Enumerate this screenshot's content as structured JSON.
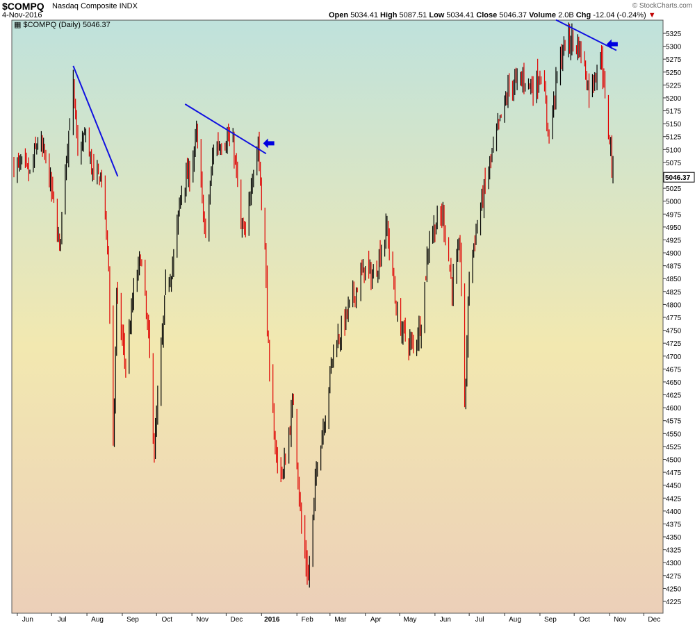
{
  "header": {
    "symbol": "$COMPQ",
    "company": "Nasdaq Composite",
    "exchange": "INDX",
    "date": "4-Nov-2016",
    "copyright": "© StockCharts.com",
    "open_label": "Open",
    "open": "5034.41",
    "high_label": "High",
    "high": "5087.51",
    "low_label": "Low",
    "low": "5034.41",
    "close_label": "Close",
    "close": "5046.37",
    "volume_label": "Volume",
    "volume": "2.0B",
    "chg_label": "Chg",
    "chg": "-12.04 (-0.24%)",
    "chg_arrow": "▼"
  },
  "legend": "$COMPQ (Daily) 5046.37",
  "last_price_label": "5046.37",
  "colors": {
    "up": "#000000",
    "down": "#e00000",
    "trendline": "#1010e0",
    "arrow": "#0000e0",
    "bg_top": "#bfe2dc",
    "bg_mid": "#f2e8b0",
    "bg_bottom": "#eccfb8"
  },
  "chart_data": {
    "type": "candlestick",
    "title": "$COMPQ (Daily) 5046.37",
    "ylim": [
      4205,
      5345
    ],
    "y_ticks": [
      4225,
      4250,
      4275,
      4300,
      4325,
      4350,
      4375,
      4400,
      4425,
      4450,
      4475,
      4500,
      4525,
      4550,
      4575,
      4600,
      4625,
      4650,
      4675,
      4700,
      4725,
      4750,
      4775,
      4800,
      4825,
      4850,
      4875,
      4900,
      4925,
      4950,
      4975,
      5000,
      5025,
      5050,
      5075,
      5100,
      5125,
      5150,
      5175,
      5200,
      5225,
      5250,
      5275,
      5300,
      5325
    ],
    "x_ticks": [
      {
        "label": "Jun",
        "bold": false
      },
      {
        "label": "Jul",
        "bold": false
      },
      {
        "label": "Aug",
        "bold": false
      },
      {
        "label": "Sep",
        "bold": false
      },
      {
        "label": "Oct",
        "bold": false
      },
      {
        "label": "Nov",
        "bold": false
      },
      {
        "label": "Dec",
        "bold": false
      },
      {
        "label": "2016",
        "bold": true
      },
      {
        "label": "Feb",
        "bold": false
      },
      {
        "label": "Mar",
        "bold": false
      },
      {
        "label": "Apr",
        "bold": false
      },
      {
        "label": "May",
        "bold": false
      },
      {
        "label": "Jun",
        "bold": false
      },
      {
        "label": "Jul",
        "bold": false
      },
      {
        "label": "Aug",
        "bold": false
      },
      {
        "label": "Sep",
        "bold": false
      },
      {
        "label": "Oct",
        "bold": false
      },
      {
        "label": "Nov",
        "bold": false
      },
      {
        "label": "Dec",
        "bold": false
      }
    ],
    "close_path": [
      {
        "date": "2015-05-29",
        "close": 5070
      },
      {
        "date": "2015-06-05",
        "close": 5068
      },
      {
        "date": "2015-06-12",
        "close": 5051
      },
      {
        "date": "2015-06-19",
        "close": 5117
      },
      {
        "date": "2015-06-26",
        "close": 5080
      },
      {
        "date": "2015-07-02",
        "close": 5009
      },
      {
        "date": "2015-07-08",
        "close": 4909
      },
      {
        "date": "2015-07-13",
        "close": 5071
      },
      {
        "date": "2015-07-20",
        "close": 5218
      },
      {
        "date": "2015-07-24",
        "close": 5088
      },
      {
        "date": "2015-07-31",
        "close": 5128
      },
      {
        "date": "2015-08-07",
        "close": 5044
      },
      {
        "date": "2015-08-14",
        "close": 5048
      },
      {
        "date": "2015-08-20",
        "close": 4877
      },
      {
        "date": "2015-08-24",
        "close": 4526
      },
      {
        "date": "2015-08-27",
        "close": 4812
      },
      {
        "date": "2015-09-04",
        "close": 4683
      },
      {
        "date": "2015-09-11",
        "close": 4822
      },
      {
        "date": "2015-09-17",
        "close": 4894
      },
      {
        "date": "2015-09-24",
        "close": 4734
      },
      {
        "date": "2015-09-29",
        "close": 4517
      },
      {
        "date": "2015-10-09",
        "close": 4830
      },
      {
        "date": "2015-10-16",
        "close": 4886
      },
      {
        "date": "2015-10-23",
        "close": 5031
      },
      {
        "date": "2015-10-30",
        "close": 5053
      },
      {
        "date": "2015-11-05",
        "close": 5127
      },
      {
        "date": "2015-11-13",
        "close": 4927
      },
      {
        "date": "2015-11-20",
        "close": 5104
      },
      {
        "date": "2015-12-02",
        "close": 5123
      },
      {
        "date": "2015-12-08",
        "close": 5098
      },
      {
        "date": "2015-12-14",
        "close": 4952
      },
      {
        "date": "2015-12-18",
        "close": 4923
      },
      {
        "date": "2015-12-23",
        "close": 5045
      },
      {
        "date": "2015-12-29",
        "close": 5108
      },
      {
        "date": "2016-01-04",
        "close": 4903
      },
      {
        "date": "2016-01-08",
        "close": 4644
      },
      {
        "date": "2016-01-15",
        "close": 4488
      },
      {
        "date": "2016-01-20",
        "close": 4472
      },
      {
        "date": "2016-01-29",
        "close": 4614
      },
      {
        "date": "2016-02-05",
        "close": 4363
      },
      {
        "date": "2016-02-11",
        "close": 4267
      },
      {
        "date": "2016-02-19",
        "close": 4504
      },
      {
        "date": "2016-02-26",
        "close": 4590
      },
      {
        "date": "2016-03-04",
        "close": 4717
      },
      {
        "date": "2016-03-11",
        "close": 4749
      },
      {
        "date": "2016-03-18",
        "close": 4796
      },
      {
        "date": "2016-03-31",
        "close": 4870
      },
      {
        "date": "2016-04-08",
        "close": 4851
      },
      {
        "date": "2016-04-20",
        "close": 4948
      },
      {
        "date": "2016-04-29",
        "close": 4775
      },
      {
        "date": "2016-05-06",
        "close": 4736
      },
      {
        "date": "2016-05-13",
        "close": 4718
      },
      {
        "date": "2016-05-20",
        "close": 4769
      },
      {
        "date": "2016-05-27",
        "close": 4933
      },
      {
        "date": "2016-06-08",
        "close": 4974
      },
      {
        "date": "2016-06-16",
        "close": 4834
      },
      {
        "date": "2016-06-23",
        "close": 4911
      },
      {
        "date": "2016-06-27",
        "close": 4594
      },
      {
        "date": "2016-07-01",
        "close": 4863
      },
      {
        "date": "2016-07-08",
        "close": 4956
      },
      {
        "date": "2016-07-15",
        "close": 5029
      },
      {
        "date": "2016-07-22",
        "close": 5100
      },
      {
        "date": "2016-07-29",
        "close": 5162
      },
      {
        "date": "2016-08-05",
        "close": 5221
      },
      {
        "date": "2016-08-12",
        "close": 5232
      },
      {
        "date": "2016-08-19",
        "close": 5238
      },
      {
        "date": "2016-08-26",
        "close": 5219
      },
      {
        "date": "2016-09-02",
        "close": 5250
      },
      {
        "date": "2016-09-09",
        "close": 5126
      },
      {
        "date": "2016-09-16",
        "close": 5245
      },
      {
        "date": "2016-09-23",
        "close": 5306
      },
      {
        "date": "2016-09-30",
        "close": 5312
      },
      {
        "date": "2016-10-07",
        "close": 5292
      },
      {
        "date": "2016-10-14",
        "close": 5214
      },
      {
        "date": "2016-10-21",
        "close": 5258
      },
      {
        "date": "2016-10-25",
        "close": 5283
      },
      {
        "date": "2016-10-28",
        "close": 5190
      },
      {
        "date": "2016-11-02",
        "close": 5105
      },
      {
        "date": "2016-11-04",
        "close": 5046.37
      }
    ],
    "last": {
      "date": "4-Nov-2016",
      "open": 5034.41,
      "high": 5087.51,
      "low": 5034.41,
      "close": 5046.37
    },
    "annotations": [
      {
        "type": "trendline",
        "from": {
          "date": "2015-07-20",
          "value": 5262
        },
        "to": {
          "date": "2015-08-28",
          "value": 5048
        }
      },
      {
        "type": "trendline",
        "from": {
          "date": "2015-10-26",
          "value": 5188
        },
        "to": {
          "date": "2016-01-05",
          "value": 5092
        }
      },
      {
        "type": "trendline",
        "from": {
          "date": "2016-09-15",
          "value": 5351
        },
        "to": {
          "date": "2016-11-07",
          "value": 5292
        }
      },
      {
        "type": "arrow",
        "date": "2015-12-31",
        "value": 5112
      },
      {
        "type": "arrow",
        "date": "2016-10-27",
        "value": 5304
      }
    ]
  }
}
